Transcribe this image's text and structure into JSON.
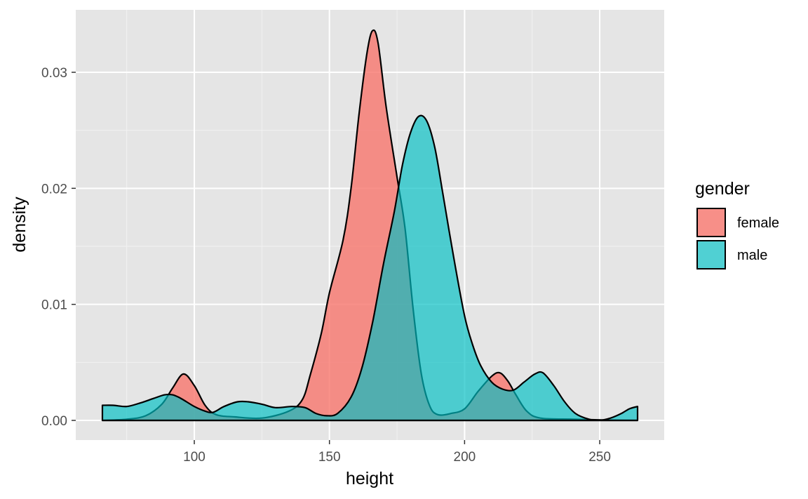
{
  "chart_data": {
    "type": "area",
    "subtype": "density",
    "xlabel": "height",
    "ylabel": "density",
    "xlim": [
      66,
      264
    ],
    "ylim": [
      0,
      0.0344
    ],
    "x_ticks": [
      100,
      150,
      200,
      250
    ],
    "x_tick_labels": [
      "100",
      "150",
      "200",
      "250"
    ],
    "y_ticks": [
      0.0,
      0.01,
      0.02,
      0.03
    ],
    "y_tick_labels": [
      "0.00",
      "0.01",
      "0.02",
      "0.03"
    ],
    "grid": true,
    "background": "#e5e5e5",
    "legend": {
      "title": "gender",
      "position": "right",
      "entries": [
        {
          "label": "female",
          "color": "#f8766d"
        },
        {
          "label": "male",
          "color": "#00bfc4"
        }
      ]
    },
    "series": [
      {
        "name": "female",
        "color": "#f8766d",
        "opacity": 0.8,
        "points": [
          [
            66,
            0
          ],
          [
            75,
            0.0001
          ],
          [
            82,
            0.0004
          ],
          [
            88,
            0.0014
          ],
          [
            92,
            0.0028
          ],
          [
            96,
            0.004
          ],
          [
            100,
            0.003
          ],
          [
            104,
            0.0013
          ],
          [
            108,
            0.0005
          ],
          [
            115,
            0.0003
          ],
          [
            125,
            0.0002
          ],
          [
            135,
            0.0008
          ],
          [
            140,
            0.0018
          ],
          [
            143,
            0.004
          ],
          [
            147,
            0.0075
          ],
          [
            150,
            0.011
          ],
          [
            155,
            0.0155
          ],
          [
            158,
            0.02
          ],
          [
            161,
            0.0265
          ],
          [
            164,
            0.0318
          ],
          [
            166,
            0.0336
          ],
          [
            168,
            0.0325
          ],
          [
            171,
            0.027
          ],
          [
            175,
            0.021
          ],
          [
            178,
            0.0165
          ],
          [
            181,
            0.0095
          ],
          [
            184,
            0.004
          ],
          [
            187,
            0.0013
          ],
          [
            190,
            0.0005
          ],
          [
            195,
            0.0006
          ],
          [
            200,
            0.001
          ],
          [
            205,
            0.0025
          ],
          [
            210,
            0.0038
          ],
          [
            213,
            0.0041
          ],
          [
            216,
            0.0034
          ],
          [
            219,
            0.0022
          ],
          [
            223,
            0.0008
          ],
          [
            228,
            0.0002
          ],
          [
            240,
            0.0001
          ],
          [
            252,
            3e-05
          ],
          [
            264,
            0
          ]
        ]
      },
      {
        "name": "male",
        "color": "#00bfc4",
        "opacity": 0.67,
        "points": [
          [
            66,
            0.0013
          ],
          [
            70,
            0.0013
          ],
          [
            75,
            0.0012
          ],
          [
            80,
            0.0015
          ],
          [
            85,
            0.0019
          ],
          [
            89,
            0.0022
          ],
          [
            92,
            0.0022
          ],
          [
            95,
            0.0019
          ],
          [
            100,
            0.0012
          ],
          [
            104,
            0.0008
          ],
          [
            107,
            0.0007
          ],
          [
            111,
            0.0012
          ],
          [
            116,
            0.0016
          ],
          [
            120,
            0.0016
          ],
          [
            125,
            0.0014
          ],
          [
            130,
            0.0011
          ],
          [
            136,
            0.0012
          ],
          [
            141,
            0.0011
          ],
          [
            145,
            0.0006
          ],
          [
            149,
            0.0004
          ],
          [
            153,
            0.0006
          ],
          [
            158,
            0.002
          ],
          [
            162,
            0.0045
          ],
          [
            166,
            0.0085
          ],
          [
            170,
            0.0135
          ],
          [
            174,
            0.018
          ],
          [
            177,
            0.022
          ],
          [
            180,
            0.0248
          ],
          [
            183,
            0.0262
          ],
          [
            186,
            0.0258
          ],
          [
            189,
            0.0235
          ],
          [
            192,
            0.0195
          ],
          [
            196,
            0.014
          ],
          [
            200,
            0.009
          ],
          [
            203,
            0.0065
          ],
          [
            206,
            0.0047
          ],
          [
            210,
            0.0033
          ],
          [
            214,
            0.0027
          ],
          [
            218,
            0.0026
          ],
          [
            222,
            0.0033
          ],
          [
            226,
            0.004
          ],
          [
            229,
            0.0041
          ],
          [
            233,
            0.003
          ],
          [
            237,
            0.0016
          ],
          [
            241,
            0.0006
          ],
          [
            246,
            0.0001
          ],
          [
            250,
            0.0
          ],
          [
            254,
            0.0002
          ],
          [
            258,
            0.0006
          ],
          [
            261,
            0.001
          ],
          [
            264,
            0.0012
          ]
        ]
      }
    ]
  }
}
